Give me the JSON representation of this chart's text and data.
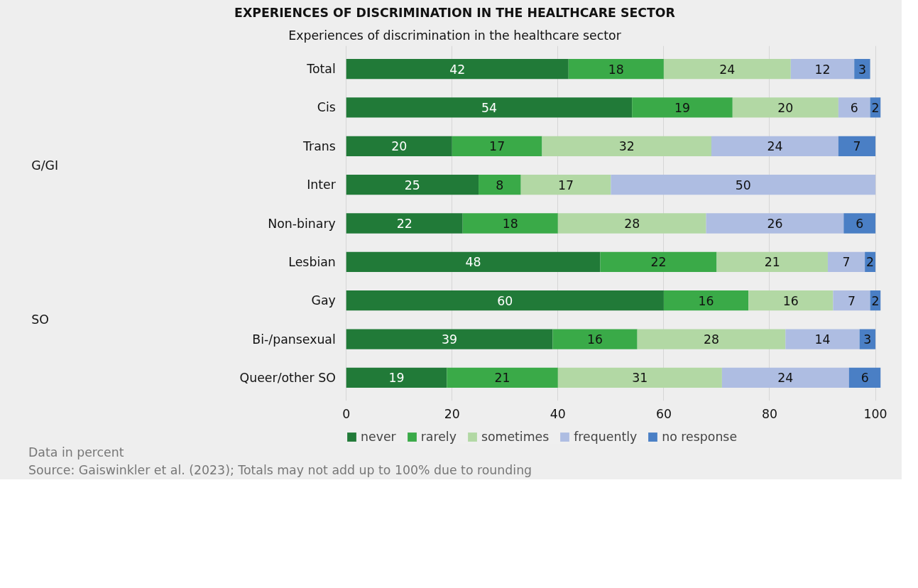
{
  "chart_data": {
    "type": "bar",
    "orientation": "horizontal",
    "stacked": true,
    "title": "EXPERIENCES OF DISCRIMINATION IN THE HEALTHCARE SECTOR",
    "subtitle": "Experiences of discrimination in the healthcare sector",
    "categories": [
      "Total",
      "Cis",
      "Trans",
      "Inter",
      "Non-binary",
      "Lesbian",
      "Gay",
      "Bi-/pansexual",
      "Queer/other SO"
    ],
    "series": [
      {
        "name": "never",
        "color": "#217a38",
        "values": [
          42,
          54,
          20,
          25,
          22,
          48,
          60,
          39,
          19
        ]
      },
      {
        "name": "rarely",
        "color": "#3aaa48",
        "values": [
          18,
          19,
          17,
          8,
          18,
          22,
          16,
          16,
          21
        ]
      },
      {
        "name": "sometimes",
        "color": "#b2d8a4",
        "values": [
          24,
          20,
          32,
          17,
          28,
          21,
          16,
          28,
          31
        ]
      },
      {
        "name": "frequently",
        "color": "#aebde2",
        "values": [
          12,
          6,
          24,
          50,
          26,
          7,
          7,
          14,
          24
        ]
      },
      {
        "name": "no response",
        "color": "#4a7fc5",
        "values": [
          3,
          2,
          7,
          null,
          6,
          2,
          2,
          3,
          6
        ]
      }
    ],
    "xlim": [
      0,
      101
    ],
    "xticks": [
      0,
      20,
      40,
      60,
      80,
      100
    ],
    "grid": "x",
    "legend": "bottom",
    "data_labels": true,
    "annotations": [
      "G/GI",
      "SO",
      "Data in percent",
      "Source: Gaiswinkler et al. (2023); Totals may not add up to 100% due to rounding"
    ]
  }
}
